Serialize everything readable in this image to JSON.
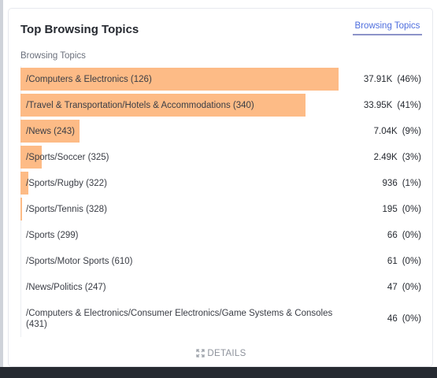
{
  "card": {
    "title": "Top Browsing Topics",
    "tab_label": "Browsing Topics",
    "section_label": "Browsing Topics",
    "details_label": "DETAILS"
  },
  "colors": {
    "bar": "#fdbb86",
    "tab_accent": "#4f6fde"
  },
  "rows": [
    {
      "label": "/Computers & Electronics (126)",
      "value": "37.91K",
      "percent": "(46%)",
      "share": 1.0
    },
    {
      "label": "/Travel & Transportation/Hotels & Accommodations (340)",
      "value": "33.95K",
      "percent": "(41%)",
      "share": 0.8955
    },
    {
      "label": "/News (243)",
      "value": "7.04K",
      "percent": "(9%)",
      "share": 0.1857
    },
    {
      "label": "/Sports/Soccer (325)",
      "value": "2.49K",
      "percent": "(3%)",
      "share": 0.0657
    },
    {
      "label": "/Sports/Rugby (322)",
      "value": "936",
      "percent": "(1%)",
      "share": 0.0247
    },
    {
      "label": "/Sports/Tennis (328)",
      "value": "195",
      "percent": "(0%)",
      "share": 0.0051
    },
    {
      "label": "/Sports (299)",
      "value": "66",
      "percent": "(0%)",
      "share": 0.0017
    },
    {
      "label": "/Sports/Motor Sports (610)",
      "value": "61",
      "percent": "(0%)",
      "share": 0.0016
    },
    {
      "label": "/News/Politics (247)",
      "value": "47",
      "percent": "(0%)",
      "share": 0.0012
    },
    {
      "label": "/Computers & Electronics/Consumer Electronics/Game Systems & Consoles (431)",
      "value": "46",
      "percent": "(0%)",
      "share": 0.0012
    }
  ]
}
